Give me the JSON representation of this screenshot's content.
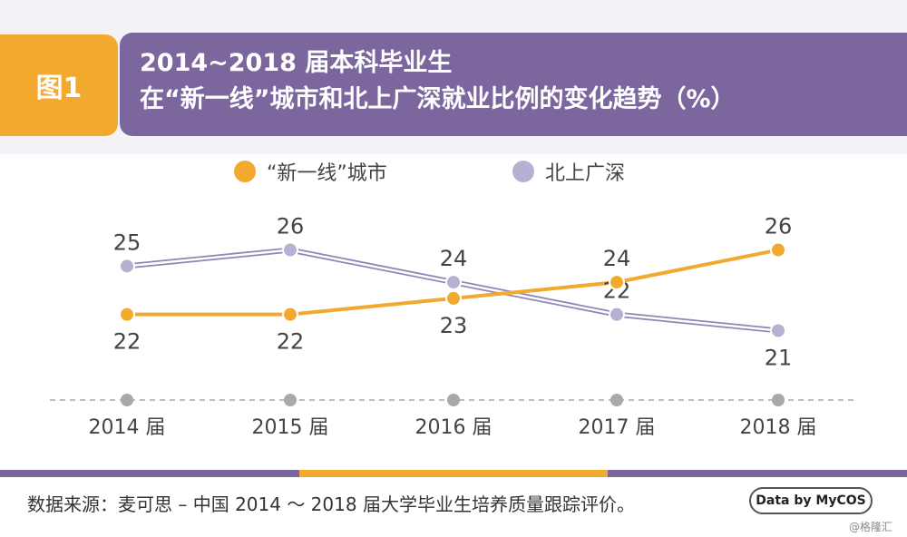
{
  "header": {
    "figure_label": "图1",
    "title_line1": "2014~2018 届本科毕业生",
    "title_line2": "在“新一线”城市和北上广深就业比例的变化趋势（%）"
  },
  "colors": {
    "orange": "#f3a92e",
    "purple": "#7b679d",
    "lavender": "#b6b0d3",
    "axis_gray": "#a9a9a9"
  },
  "chart_data": {
    "type": "line",
    "categories": [
      "2014 届",
      "2015 届",
      "2016 届",
      "2017 届",
      "2018 届"
    ],
    "series": [
      {
        "name": "“新一线”城市",
        "values": [
          22,
          22,
          23,
          24,
          26
        ]
      },
      {
        "name": "北上广深",
        "values": [
          25,
          26,
          24,
          22,
          21
        ]
      }
    ],
    "ylim": [
      19,
      28
    ],
    "grid": false,
    "legend_position": "top-center",
    "data_labels": true
  },
  "footer": {
    "source": "数据来源：麦可思 – 中国 2014 ～ 2018 届大学毕业生培养质量跟踪评价。",
    "badge": "Data by MyCOS",
    "watermark": "@格隆汇"
  }
}
